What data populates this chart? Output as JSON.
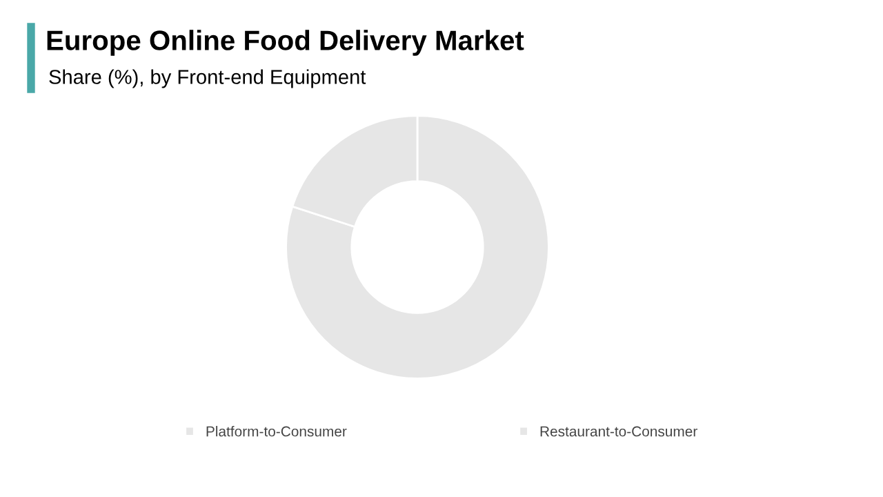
{
  "chart_data": {
    "type": "donut",
    "title": "Europe Online Food Delivery Market",
    "subtitle": "Share (%), by Front-end Equipment",
    "categories": [
      "Platform-to-Consumer",
      "Restaurant-to-Consumer"
    ],
    "values": [
      80,
      20
    ],
    "colors": [
      "#e6e6e6",
      "#e6e6e6"
    ],
    "legend": "bottom"
  }
}
